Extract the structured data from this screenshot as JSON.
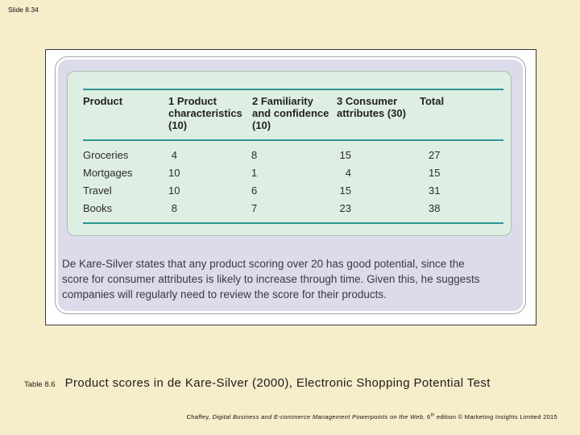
{
  "slide": {
    "label": "Slide 8.34"
  },
  "figure": {
    "table": {
      "columns": [
        {
          "lines": [
            "Product",
            "",
            ""
          ]
        },
        {
          "lines": [
            "1 Product",
            "characteristics",
            "(10)"
          ]
        },
        {
          "lines": [
            "2 Familiarity",
            "and confidence",
            "(10)"
          ]
        },
        {
          "lines": [
            "3 Consumer",
            "attributes (30)",
            ""
          ]
        },
        {
          "lines": [
            "Total",
            "",
            ""
          ]
        }
      ],
      "rows": [
        {
          "product": "Groceries",
          "c1": "4",
          "c2": "8",
          "c3": "15",
          "total": "27"
        },
        {
          "product": "Mortgages",
          "c1": "10",
          "c2": "1",
          "c3": "4",
          "total": "15"
        },
        {
          "product": "Travel",
          "c1": "10",
          "c2": "6",
          "c3": "15",
          "total": "31"
        },
        {
          "product": "Books",
          "c1": "8",
          "c2": "7",
          "c3": "23",
          "total": "38"
        }
      ]
    },
    "note_lines": [
      "De Kare-Silver states that any product scoring over 20 has good potential, since the",
      "score for consumer attributes is likely to increase through time. Given this, he suggests",
      "companies will regularly need to review the score for their products."
    ]
  },
  "caption": {
    "label": "Table 8.6",
    "title": "Product scores in de Kare-Silver (2000), Electronic Shopping Potential Test"
  },
  "footer": {
    "author": "Chaffey, ",
    "book_title_italic": "Digital Business and E-commerce Management Powerpoints on the Web,",
    "edition_number": " 6",
    "edition_sup": "th",
    "edition_rest": " edition © Marketing Insights Limited 2015"
  },
  "colors": {
    "background": "#F6EDCB",
    "panel_lavender": "#DBDBEA",
    "panel_green": "#DFEEE2",
    "rule_teal": "#2F9394"
  }
}
